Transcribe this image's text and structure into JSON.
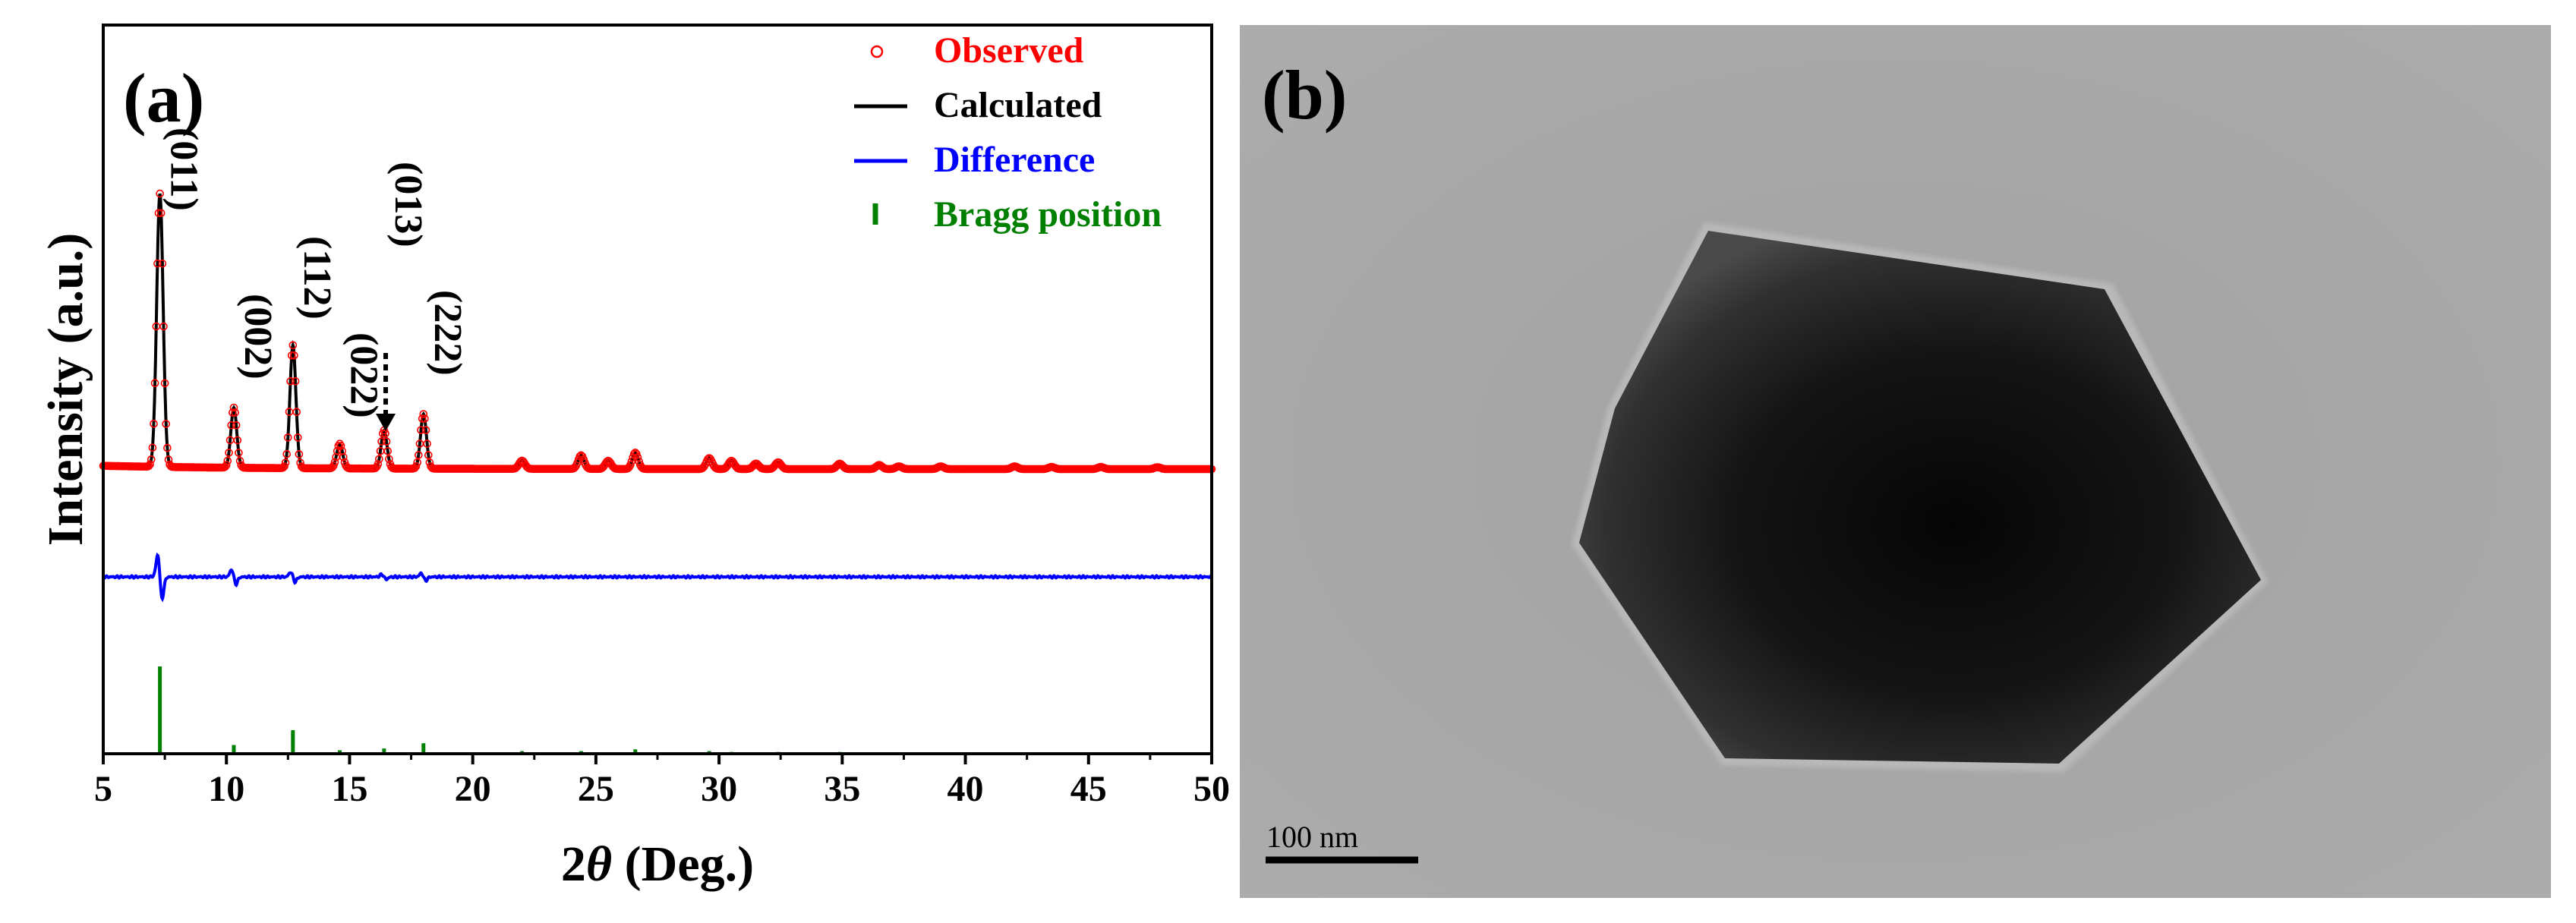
{
  "chart_data": {
    "type": "line",
    "panel_label": "(a)",
    "xlabel_prefix": "2",
    "xlabel_theta": "θ",
    "xlabel_suffix": " (Deg.)",
    "ylabel": "Intensity (a.u.)",
    "xlim": [
      5,
      50
    ],
    "x_ticks": [
      "5",
      "10",
      "15",
      "20",
      "25",
      "30",
      "35",
      "40",
      "45",
      "50"
    ],
    "grid": false,
    "legend_position": "top-right",
    "legend": [
      {
        "name": "Observed",
        "color": "#ff0000",
        "marker": "circle"
      },
      {
        "name": "Calculated",
        "color": "#000000",
        "marker": "line"
      },
      {
        "name": "Difference",
        "color": "#0000ff",
        "marker": "line"
      },
      {
        "name": "Bragg position",
        "color": "#008000",
        "marker": "tick"
      }
    ],
    "peaks": [
      {
        "two_theta": 7.3,
        "intensity": 100,
        "hkl": "(011)"
      },
      {
        "two_theta": 10.3,
        "intensity": 22,
        "hkl": "(002)"
      },
      {
        "two_theta": 12.7,
        "intensity": 45,
        "hkl": "(112)"
      },
      {
        "two_theta": 14.6,
        "intensity": 9,
        "hkl": "(022)"
      },
      {
        "two_theta": 16.4,
        "intensity": 14,
        "hkl": "(013)"
      },
      {
        "two_theta": 18.0,
        "intensity": 20,
        "hkl": "(222)"
      },
      {
        "two_theta": 22.0,
        "intensity": 3,
        "hkl": ""
      },
      {
        "two_theta": 24.4,
        "intensity": 5,
        "hkl": ""
      },
      {
        "two_theta": 25.5,
        "intensity": 3,
        "hkl": ""
      },
      {
        "two_theta": 26.6,
        "intensity": 6,
        "hkl": ""
      },
      {
        "two_theta": 29.6,
        "intensity": 4,
        "hkl": ""
      },
      {
        "two_theta": 30.5,
        "intensity": 3,
        "hkl": ""
      },
      {
        "two_theta": 31.5,
        "intensity": 2,
        "hkl": ""
      },
      {
        "two_theta": 32.4,
        "intensity": 2.5,
        "hkl": ""
      },
      {
        "two_theta": 34.9,
        "intensity": 2,
        "hkl": ""
      },
      {
        "two_theta": 36.5,
        "intensity": 1.5,
        "hkl": ""
      },
      {
        "two_theta": 37.3,
        "intensity": 1,
        "hkl": ""
      },
      {
        "two_theta": 39.0,
        "intensity": 1,
        "hkl": ""
      },
      {
        "two_theta": 42.0,
        "intensity": 1,
        "hkl": ""
      },
      {
        "two_theta": 43.5,
        "intensity": 0.8,
        "hkl": ""
      },
      {
        "two_theta": 45.5,
        "intensity": 0.8,
        "hkl": ""
      },
      {
        "two_theta": 47.8,
        "intensity": 0.7,
        "hkl": ""
      }
    ],
    "difference_spikes": [
      {
        "two_theta": 7.3,
        "amplitude": 18
      },
      {
        "two_theta": 10.3,
        "amplitude": 6
      },
      {
        "two_theta": 12.7,
        "amplitude": 4
      },
      {
        "two_theta": 18.0,
        "amplitude": 3
      },
      {
        "two_theta": 16.4,
        "amplitude": 2
      }
    ],
    "bragg_positions": [
      {
        "two_theta": 7.3,
        "height": 100
      },
      {
        "two_theta": 10.3,
        "height": 10
      },
      {
        "two_theta": 12.7,
        "height": 27
      },
      {
        "two_theta": 14.6,
        "height": 4
      },
      {
        "two_theta": 16.4,
        "height": 6
      },
      {
        "two_theta": 18.0,
        "height": 12
      },
      {
        "two_theta": 22.0,
        "height": 3
      },
      {
        "two_theta": 24.4,
        "height": 3
      },
      {
        "two_theta": 26.6,
        "height": 5
      },
      {
        "two_theta": 29.6,
        "height": 3
      },
      {
        "two_theta": 30.5,
        "height": 2
      },
      {
        "two_theta": 32.4,
        "height": 2
      },
      {
        "two_theta": 34.9,
        "height": 2
      },
      {
        "two_theta": 37.3,
        "height": 1.5
      },
      {
        "two_theta": 42.0,
        "height": 1.5
      },
      {
        "two_theta": 45.5,
        "height": 1.5
      }
    ],
    "annotation_arrow_target": "(013)"
  },
  "image_panel": {
    "panel_label": "(b)",
    "scale_bar_label": "100 nm"
  }
}
